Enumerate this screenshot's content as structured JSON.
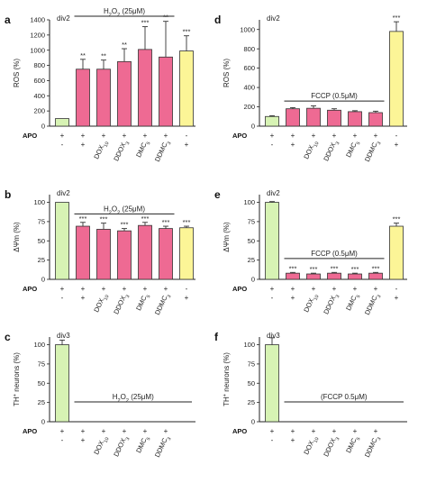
{
  "colors": {
    "green": "#d7f3b4",
    "pink": "#ee6a93",
    "yellow": "#fcf597"
  },
  "chart_data": [
    {
      "panel": "a",
      "type": "bar",
      "div": "div2",
      "ylabel": "ROS (%)",
      "ylim": [
        0,
        1400
      ],
      "yticks": [
        0,
        200,
        400,
        600,
        800,
        1000,
        1200,
        1400
      ],
      "treatment": "H2O2 (25μM)",
      "treatment_on_top": true,
      "apo": [
        "+",
        "+",
        "+",
        "+",
        "+",
        "+",
        "-"
      ],
      "treat_signs": [
        "-",
        "+",
        "+",
        "+",
        "+",
        "+",
        "+"
      ],
      "categories": [
        "",
        "",
        "DOX10",
        "DDOX3",
        "DMC5",
        "DDMC3",
        ""
      ],
      "values": [
        100,
        750,
        750,
        850,
        1010,
        910,
        990
      ],
      "errors": [
        0,
        130,
        120,
        170,
        300,
        470,
        200
      ],
      "sig": [
        "",
        "**",
        "**",
        "**",
        "***",
        "**",
        "***"
      ],
      "colors": [
        "green",
        "pink",
        "pink",
        "pink",
        "pink",
        "pink",
        "yellow"
      ]
    },
    {
      "panel": "d",
      "type": "bar",
      "div": "div2",
      "ylabel": "ROS (%)",
      "ylim": [
        0,
        1100
      ],
      "yticks": [
        0,
        200,
        400,
        600,
        800,
        1000
      ],
      "treatment": "FCCP (0.5μM)",
      "treatment_on_top": false,
      "apo": [
        "+",
        "+",
        "+",
        "+",
        "+",
        "+",
        "-"
      ],
      "treat_signs": [
        "-",
        "+",
        "+",
        "+",
        "+",
        "+",
        "+"
      ],
      "categories": [
        "",
        "",
        "DOX10",
        "DDOX3",
        "DMC5",
        "DDMC3",
        ""
      ],
      "values": [
        100,
        180,
        185,
        165,
        150,
        140,
        980
      ],
      "errors": [
        8,
        12,
        25,
        15,
        10,
        15,
        100
      ],
      "sig": [
        "",
        "",
        "",
        "",
        "",
        "",
        "***"
      ],
      "colors": [
        "green",
        "pink",
        "pink",
        "pink",
        "pink",
        "pink",
        "yellow"
      ]
    },
    {
      "panel": "b",
      "type": "bar",
      "div": "div2",
      "ylabel": "ΔΨm (%)",
      "ylim": [
        0,
        110
      ],
      "yticks": [
        0,
        25,
        50,
        75,
        100
      ],
      "treatment": "H2O2 (25μM)",
      "treatment_on_top": false,
      "apo": [
        "+",
        "+",
        "+",
        "+",
        "+",
        "+",
        "-"
      ],
      "treat_signs": [
        "-",
        "+",
        "+",
        "+",
        "+",
        "+",
        "+"
      ],
      "categories": [
        "",
        "",
        "DOX10",
        "DDOX3",
        "DMC5",
        "DDMC3",
        ""
      ],
      "values": [
        100,
        69,
        65,
        63,
        70,
        66,
        67
      ],
      "errors": [
        0,
        5,
        8,
        3,
        4,
        3,
        2
      ],
      "sig": [
        "",
        "***",
        "***",
        "***",
        "***",
        "***",
        "***"
      ],
      "colors": [
        "green",
        "pink",
        "pink",
        "pink",
        "pink",
        "pink",
        "yellow"
      ]
    },
    {
      "panel": "e",
      "type": "bar",
      "div": "div2",
      "ylabel": "ΔΨm (%)",
      "ylim": [
        0,
        110
      ],
      "yticks": [
        0,
        25,
        50,
        75,
        100
      ],
      "treatment": "FCCP (0.5μM)",
      "treatment_on_top": false,
      "apo": [
        "+",
        "+",
        "+",
        "+",
        "+",
        "+",
        "-"
      ],
      "treat_signs": [
        "-",
        "+",
        "+",
        "+",
        "+",
        "+",
        "+"
      ],
      "categories": [
        "",
        "",
        "DOX10",
        "DDOX3",
        "DMC5",
        "DDMC3",
        ""
      ],
      "values": [
        100,
        8,
        7,
        8,
        7,
        8,
        69
      ],
      "errors": [
        1,
        1,
        1,
        1,
        1,
        1,
        4
      ],
      "sig": [
        "",
        "***",
        "***",
        "***",
        "***",
        "***",
        "***"
      ],
      "colors": [
        "green",
        "pink",
        "pink",
        "pink",
        "pink",
        "pink",
        "yellow"
      ]
    },
    {
      "panel": "c",
      "type": "bar",
      "div": "div3",
      "ylabel": "TH+ neurons (%)",
      "ylim": [
        0,
        110
      ],
      "yticks": [
        0,
        25,
        50,
        75,
        100
      ],
      "treatment": "H2O2 (25μM)",
      "treatment_on_top": false,
      "apo": [
        "+",
        "+",
        "+",
        "+",
        "+",
        "+"
      ],
      "treat_signs": [
        "-",
        "+",
        "+",
        "+",
        "+",
        "+"
      ],
      "categories": [
        "",
        "",
        "DOX10",
        "DDOX3",
        "DMC5",
        "DDMC3"
      ],
      "values": [
        100,
        0,
        0,
        0,
        0,
        0
      ],
      "errors": [
        6,
        0,
        0,
        0,
        0,
        0
      ],
      "sig": [
        "",
        "",
        "",
        "",
        "",
        ""
      ],
      "colors": [
        "green",
        "pink",
        "pink",
        "pink",
        "pink",
        "pink"
      ]
    },
    {
      "panel": "f",
      "type": "bar",
      "div": "div3",
      "ylabel": "TH+ neurons (%)",
      "ylim": [
        0,
        110
      ],
      "yticks": [
        0,
        25,
        50,
        75,
        100
      ],
      "treatment": "(FCCP 0.5μM)",
      "treatment_on_top": false,
      "apo": [
        "+",
        "+",
        "+",
        "+",
        "+",
        "+"
      ],
      "treat_signs": [
        "-",
        "+",
        "+",
        "+",
        "+",
        "+"
      ],
      "categories": [
        "",
        "",
        "DOX10",
        "DDOX3",
        "DMC5",
        "DDMC3"
      ],
      "values": [
        100,
        0,
        0,
        0,
        0,
        0
      ],
      "errors": [
        9,
        0,
        0,
        0,
        0,
        0
      ],
      "sig": [
        "",
        "",
        "",
        "",
        "",
        ""
      ],
      "colors": [
        "green",
        "pink",
        "pink",
        "pink",
        "pink",
        "pink"
      ]
    }
  ],
  "row_label": "APO"
}
